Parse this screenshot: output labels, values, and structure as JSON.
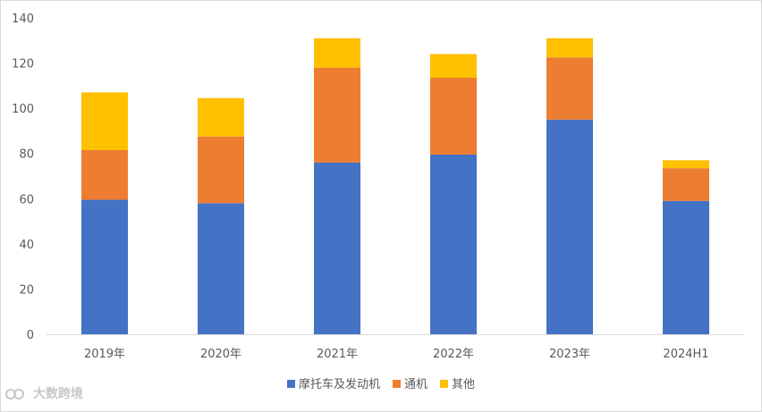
{
  "chart_data": {
    "type": "bar",
    "stacked": true,
    "categories": [
      "2019年",
      "2020年",
      "2021年",
      "2022年",
      "2023年",
      "2024H1"
    ],
    "series": [
      {
        "name": "摩托车及发动机",
        "color": "#4472c4",
        "values": [
          59.5,
          58.0,
          76.0,
          79.5,
          95.0,
          59.0
        ]
      },
      {
        "name": "通机",
        "color": "#ed7d31",
        "values": [
          22.0,
          29.5,
          42.0,
          34.0,
          27.5,
          14.5
        ]
      },
      {
        "name": "其他",
        "color": "#ffc000",
        "values": [
          25.5,
          17.0,
          13.0,
          10.5,
          8.5,
          3.5
        ]
      }
    ],
    "ylim": [
      0,
      140
    ],
    "yticks": [
      0,
      20,
      40,
      60,
      80,
      100,
      120,
      140
    ],
    "grid": false,
    "legend_position": "bottom"
  },
  "watermark": {
    "text": "大数跨境",
    "icon": "logo-icon"
  }
}
